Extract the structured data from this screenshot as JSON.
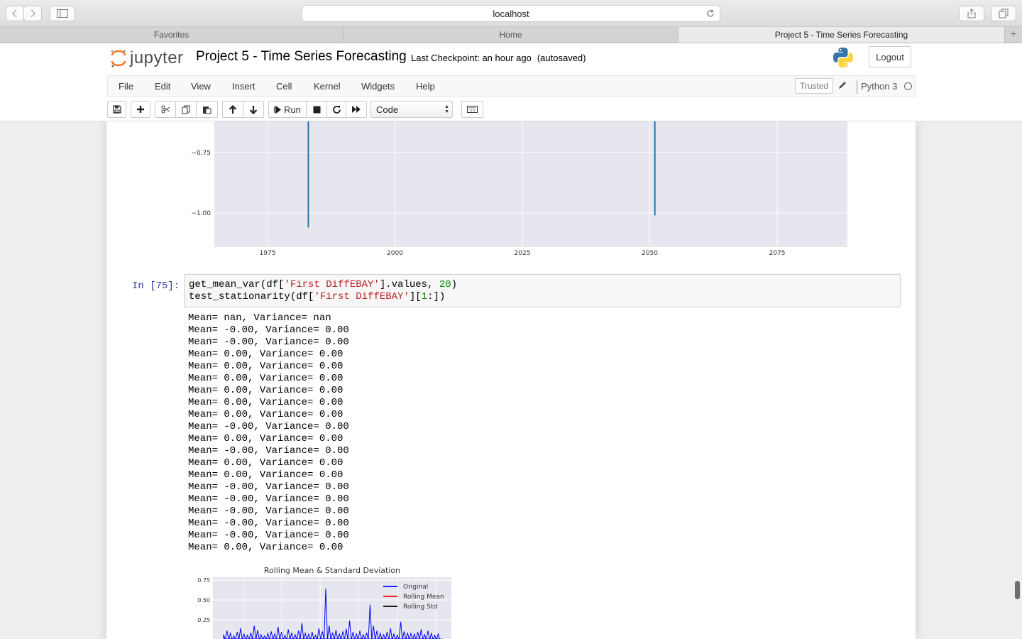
{
  "browser": {
    "url": "localhost",
    "tabs": [
      {
        "label": "Favorites",
        "active": false
      },
      {
        "label": "Home",
        "active": false
      },
      {
        "label": "Project 5 - Time Series Forecasting",
        "active": true
      }
    ]
  },
  "header": {
    "logo_text": "jupyter",
    "notebook_title": "Project 5 - Time Series Forecasting",
    "checkpoint": "Last Checkpoint: an hour ago",
    "autosaved": "(autosaved)",
    "logout_label": "Logout"
  },
  "menu": {
    "items": [
      "File",
      "Edit",
      "View",
      "Insert",
      "Cell",
      "Kernel",
      "Widgets",
      "Help"
    ],
    "trusted_label": "Trusted",
    "kernel_name": "Python 3"
  },
  "toolbar": {
    "run_label": "Run",
    "cell_type": "Code",
    "icons": [
      "save-icon",
      "plus-icon",
      "scissors-icon",
      "copy-icon",
      "paste-icon",
      "arrow-up-icon",
      "arrow-down-icon",
      "run-icon",
      "stop-icon",
      "restart-icon",
      "fast-forward-icon",
      "keyboard-icon"
    ]
  },
  "cell": {
    "prompt": "In [75]:",
    "code_line1_a": "get_mean_var(df[",
    "code_line1_str": "'First DiffEBAY'",
    "code_line1_b": "].values, ",
    "code_line1_num": "20",
    "code_line1_c": ")",
    "code_line2_a": "test_stationarity(df[",
    "code_line2_str": "'First DiffEBAY'",
    "code_line2_b": "][",
    "code_line2_num": "1",
    "code_line2_c": ":])",
    "output_lines": [
      "Mean= nan, Variance= nan",
      "Mean= -0.00, Variance= 0.00",
      "Mean= -0.00, Variance= 0.00",
      "Mean= 0.00, Variance= 0.00",
      "Mean= 0.00, Variance= 0.00",
      "Mean= 0.00, Variance= 0.00",
      "Mean= 0.00, Variance= 0.00",
      "Mean= 0.00, Variance= 0.00",
      "Mean= 0.00, Variance= 0.00",
      "Mean= -0.00, Variance= 0.00",
      "Mean= 0.00, Variance= 0.00",
      "Mean= -0.00, Variance= 0.00",
      "Mean= 0.00, Variance= 0.00",
      "Mean= 0.00, Variance= 0.00",
      "Mean= -0.00, Variance= 0.00",
      "Mean= -0.00, Variance= 0.00",
      "Mean= -0.00, Variance= 0.00",
      "Mean= -0.00, Variance= 0.00",
      "Mean= -0.00, Variance= 0.00",
      "Mean= 0.00, Variance= 0.00"
    ]
  },
  "chart_data": [
    {
      "type": "line",
      "title": "",
      "x_ticks": [
        "1975",
        "2000",
        "2025",
        "2050",
        "2075"
      ],
      "y_ticks": [
        "−0.75",
        "−1.00"
      ],
      "series": [
        {
          "color": "#1f77b4",
          "points": [
            {
              "x": 1983,
              "y": -1.06
            },
            {
              "x": 2051,
              "y": -1.01
            }
          ]
        }
      ],
      "grid": true
    },
    {
      "type": "line",
      "title": "Rolling Mean & Standard Deviation",
      "y_ticks": [
        "0.75",
        "0.50",
        "0.25"
      ],
      "legend": [
        {
          "name": "Original",
          "color": "#0000ff"
        },
        {
          "name": "Rolling Mean",
          "color": "#ff0000"
        },
        {
          "name": "Rolling Std",
          "color": "#000000"
        }
      ],
      "legend_position": "top-right",
      "grid": true
    }
  ]
}
